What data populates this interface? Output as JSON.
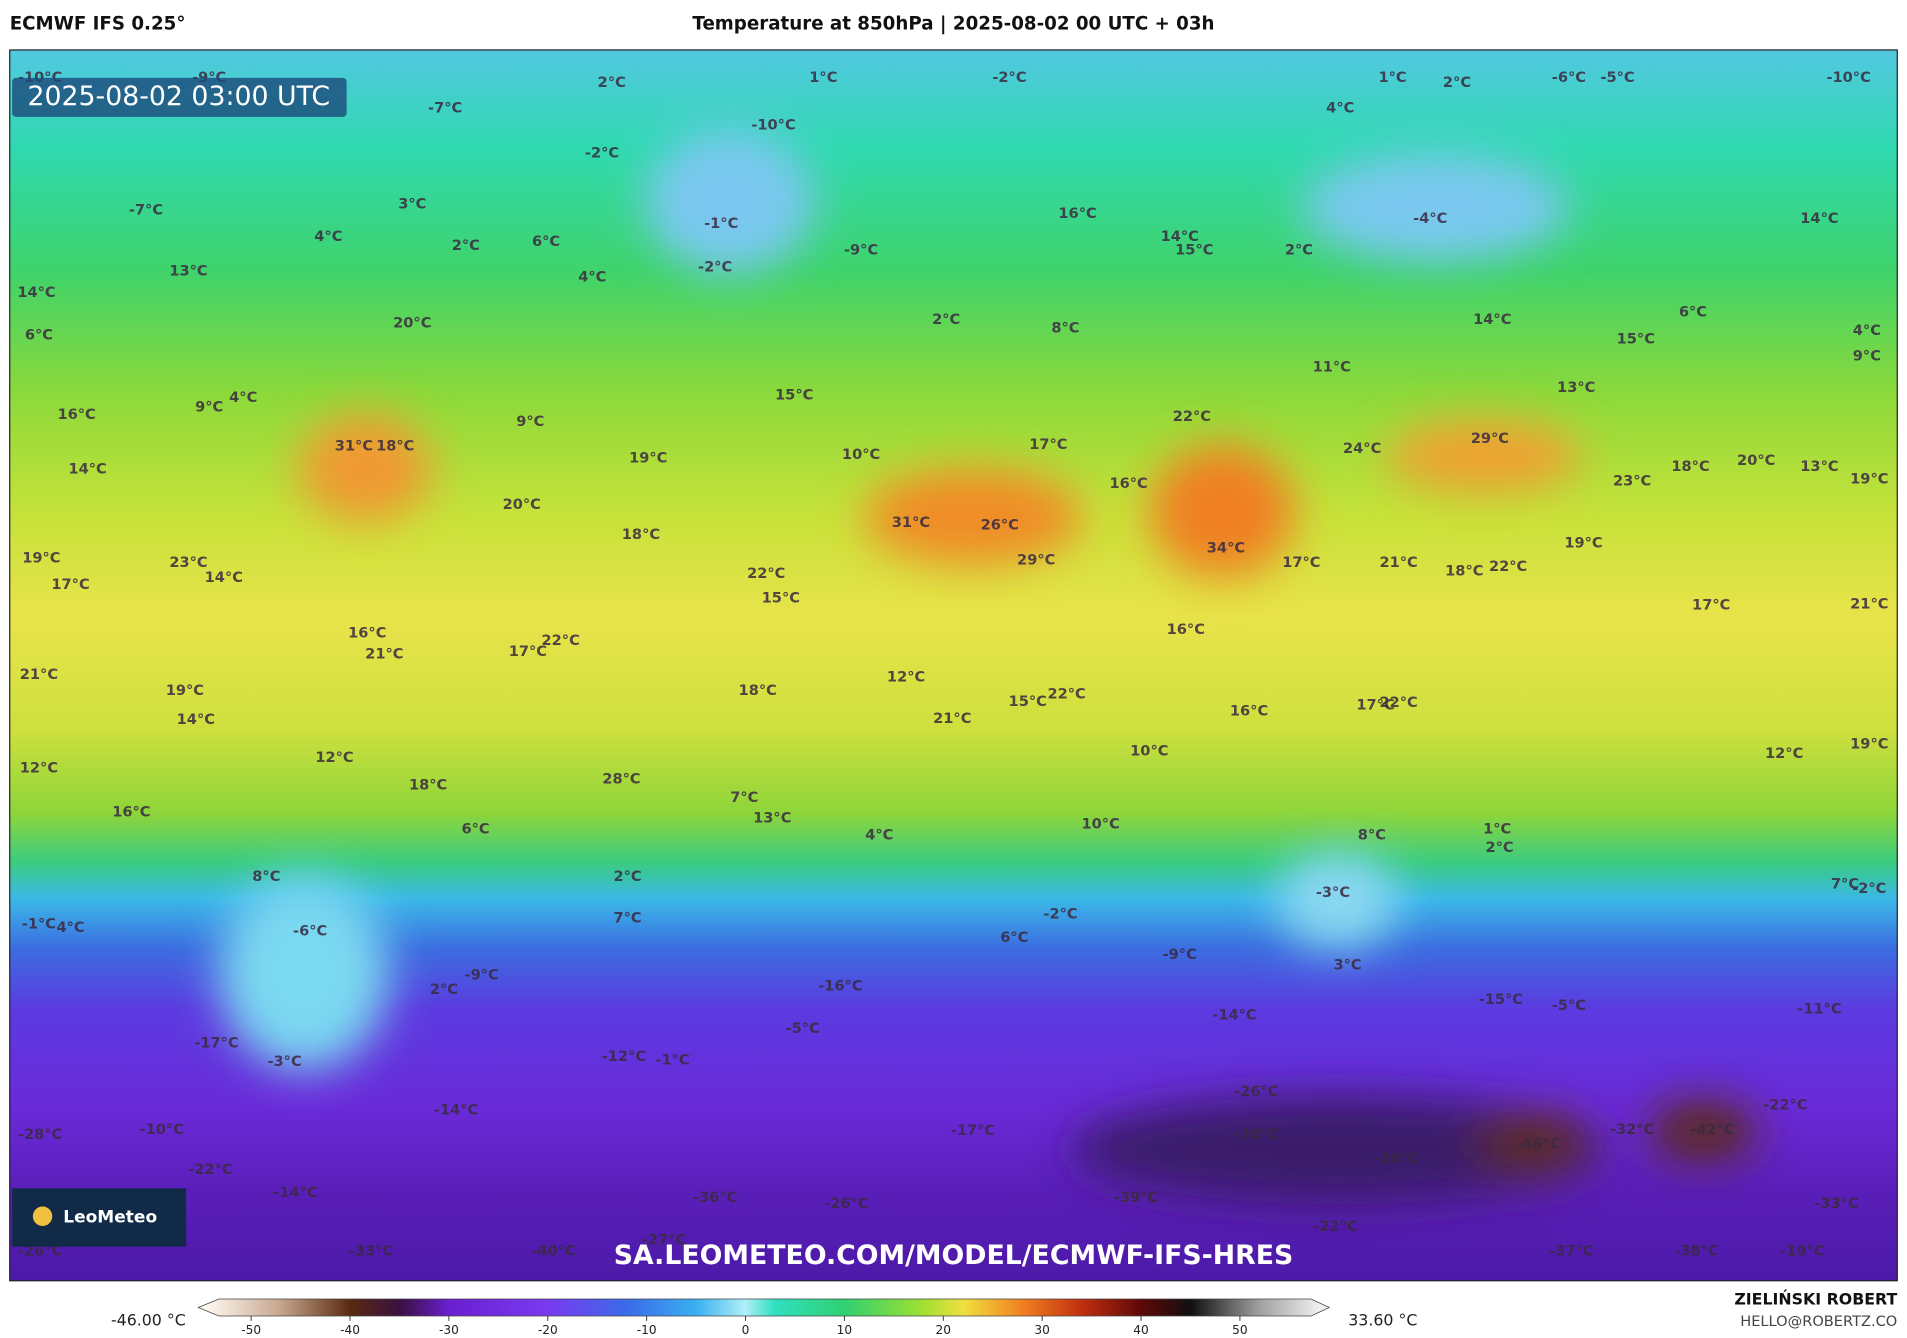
{
  "header": {
    "model": "ECMWF IFS 0.25°",
    "title": "Temperature at 850hPa | 2025-08-02 00 UTC + 03h"
  },
  "map": {
    "timestamp": "2025-08-02 03:00 UTC",
    "watermark": "SA.LEOMETEO.COM/MODEL/ECMWF-IFS-HRES",
    "logo": "LeoMeteo",
    "temperature_labels": [
      "-10°C",
      "-9°C",
      "2°C",
      "1°C",
      "-2°C",
      "1°C",
      "2°C",
      "-6°C",
      "-5°C",
      "-10°C",
      "-7°C",
      "-10°C",
      "4°C",
      "-2°C",
      "3°C",
      "-7°C",
      "4°C",
      "2°C",
      "6°C",
      "-1°C",
      "-2°C",
      "4°C",
      "-9°C",
      "16°C",
      "14°C",
      "15°C",
      "2°C",
      "-4°C",
      "14°C",
      "14°C",
      "13°C",
      "6°C",
      "20°C",
      "2°C",
      "8°C",
      "14°C",
      "6°C",
      "15°C",
      "4°C",
      "9°C",
      "11°C",
      "16°C",
      "9°C",
      "4°C",
      "15°C",
      "13°C",
      "9°C",
      "22°C",
      "14°C",
      "31°C",
      "18°C",
      "19°C",
      "10°C",
      "17°C",
      "24°C",
      "29°C",
      "18°C",
      "20°C",
      "13°C",
      "23°C",
      "19°C",
      "16°C",
      "20°C",
      "31°C",
      "26°C",
      "18°C",
      "34°C",
      "19°C",
      "23°C",
      "14°C",
      "29°C",
      "17°C",
      "21°C",
      "18°C",
      "22°C",
      "19°C",
      "17°C",
      "22°C",
      "15°C",
      "17°C",
      "16°C",
      "16°C",
      "21°C",
      "22°C",
      "17°C",
      "21°C",
      "12°C",
      "19°C",
      "18°C",
      "15°C",
      "22°C",
      "21°C",
      "17°C",
      "22°C",
      "16°C",
      "14°C",
      "21°C",
      "12°C",
      "12°C",
      "10°C",
      "12°C",
      "19°C",
      "18°C",
      "28°C",
      "7°C",
      "13°C",
      "16°C",
      "6°C",
      "4°C",
      "10°C",
      "8°C",
      "1°C",
      "2°C",
      "8°C",
      "2°C",
      "-3°C",
      "7°C",
      "-2°C",
      "-1°C",
      "4°C",
      "-6°C",
      "7°C",
      "-2°C",
      "6°C",
      "3°C",
      "-9°C",
      "-9°C",
      "2°C",
      "-16°C",
      "-15°C",
      "-5°C",
      "-11°C",
      "-14°C",
      "-5°C",
      "-17°C",
      "-3°C",
      "-12°C",
      "-1°C",
      "-26°C",
      "-22°C",
      "-14°C",
      "-28°C",
      "-10°C",
      "-17°C",
      "-38°C",
      "-46°C",
      "-32°C",
      "-42°C",
      "-36°C",
      "-22°C",
      "-14°C",
      "-36°C",
      "-26°C",
      "-39°C",
      "-33°C",
      "-22°C",
      "-27°C",
      "-26°C",
      "-33°C",
      "-40°C",
      "-37°C",
      "-38°C",
      "-19°C"
    ]
  },
  "colorbar": {
    "min_label": "-46.00 °C",
    "max_label": "33.60 °C",
    "ticks": [
      -50,
      -40,
      -30,
      -20,
      -10,
      0,
      10,
      20,
      30,
      40,
      50
    ]
  },
  "footer": {
    "author": "ZIELIŃSKI ROBERT",
    "email": "HELLO@ROBERTZ.CO"
  }
}
